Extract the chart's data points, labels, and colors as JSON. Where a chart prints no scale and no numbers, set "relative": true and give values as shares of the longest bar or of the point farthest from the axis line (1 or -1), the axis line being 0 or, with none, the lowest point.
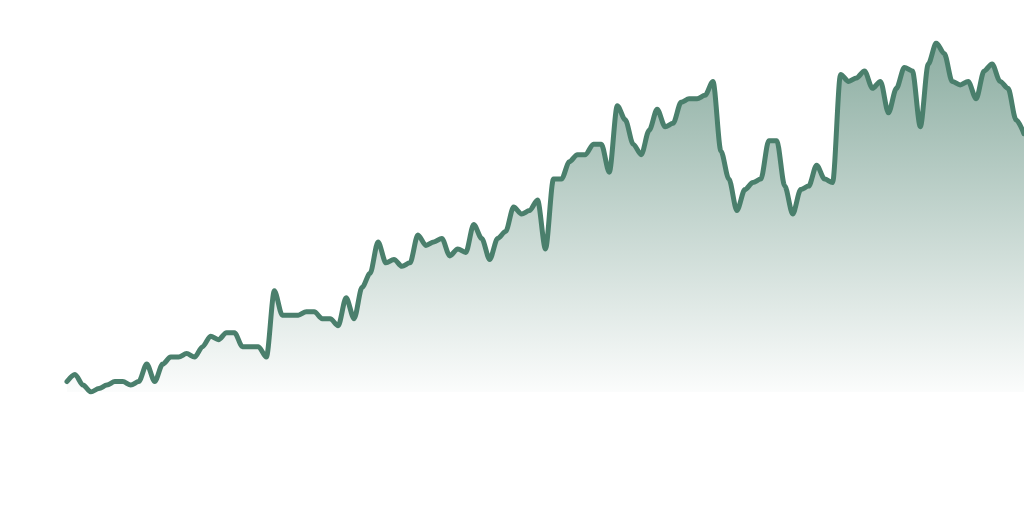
{
  "chart_data": {
    "type": "area",
    "relative": true,
    "color": "#4a7f6c",
    "categories": [
      null,
      null,
      null,
      null,
      null,
      null,
      null,
      null,
      null,
      null,
      null,
      null,
      null,
      null,
      null,
      null,
      null,
      null,
      null,
      null,
      null,
      null,
      null,
      null,
      null,
      null,
      null,
      null,
      null,
      null,
      null,
      null,
      null,
      null,
      null,
      null,
      null,
      null,
      null,
      null,
      null,
      null,
      null,
      null,
      null,
      null,
      null,
      null,
      null,
      null,
      null,
      null,
      null,
      null,
      null,
      null,
      null,
      null,
      null,
      null,
      null,
      null,
      null,
      null,
      null,
      null,
      null,
      null,
      null,
      null,
      null,
      null,
      null,
      null,
      null,
      null,
      null,
      null,
      null,
      null,
      null,
      null,
      null,
      null,
      null,
      null,
      null,
      null,
      null,
      null,
      null,
      null,
      null,
      null,
      null,
      null,
      null,
      null,
      null,
      null,
      null,
      null,
      null,
      null,
      null,
      null,
      null,
      null,
      null,
      null,
      null,
      null,
      null,
      null,
      null,
      null,
      null,
      null,
      null,
      null,
      null
    ],
    "values": [
      0.03,
      0.05,
      0.02,
      0,
      0.01,
      0.02,
      0.03,
      0.03,
      0.02,
      0.03,
      0.08,
      0.03,
      0.08,
      0.1,
      0.1,
      0.11,
      0.1,
      0.13,
      0.16,
      0.15,
      0.17,
      0.17,
      0.13,
      0.13,
      0.13,
      0.1,
      0.29,
      0.22,
      0.22,
      0.22,
      0.23,
      0.23,
      0.21,
      0.21,
      0.19,
      0.27,
      0.21,
      0.3,
      0.34,
      0.43,
      0.37,
      0.38,
      0.36,
      0.37,
      0.45,
      0.42,
      0.43,
      0.44,
      0.39,
      0.41,
      0.4,
      0.48,
      0.44,
      0.38,
      0.44,
      0.46,
      0.53,
      0.51,
      0.52,
      0.55,
      0.41,
      0.61,
      0.61,
      0.66,
      0.68,
      0.68,
      0.71,
      0.71,
      0.63,
      0.82,
      0.78,
      0.71,
      0.68,
      0.75,
      0.81,
      0.76,
      0.77,
      0.83,
      0.84,
      0.84,
      0.85,
      0.89,
      0.69,
      0.61,
      0.52,
      0.58,
      0.6,
      0.61,
      0.72,
      0.72,
      0.59,
      0.51,
      0.58,
      0.59,
      0.65,
      0.61,
      0.6,
      0.91,
      0.89,
      0.9,
      0.92,
      0.87,
      0.89,
      0.8,
      0.87,
      0.93,
      0.92,
      0.76,
      0.94,
      1,
      0.97,
      0.89,
      0.88,
      0.89,
      0.84,
      0.92,
      0.94,
      0.89,
      0.87,
      0.78,
      0.74
    ]
  }
}
